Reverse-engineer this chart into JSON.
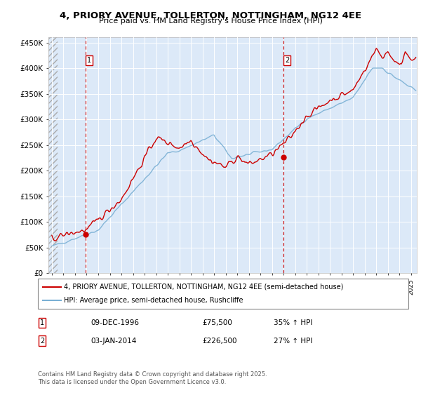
{
  "title": "4, PRIORY AVENUE, TOLLERTON, NOTTINGHAM, NG12 4EE",
  "subtitle": "Price paid vs. HM Land Registry's House Price Index (HPI)",
  "line1_label": "4, PRIORY AVENUE, TOLLERTON, NOTTINGHAM, NG12 4EE (semi-detached house)",
  "line2_label": "HPI: Average price, semi-detached house, Rushcliffe",
  "sale1_date": "09-DEC-1996",
  "sale1_price": "£75,500",
  "sale1_hpi": "35% ↑ HPI",
  "sale1_year": 1996.92,
  "sale1_value": 75500,
  "sale2_date": "03-JAN-2014",
  "sale2_price": "£226,500",
  "sale2_hpi": "27% ↑ HPI",
  "sale2_year": 2014.01,
  "sale2_value": 226500,
  "footer": "Contains HM Land Registry data © Crown copyright and database right 2025.\nThis data is licensed under the Open Government Licence v3.0.",
  "bg_color": "#dce9f8",
  "line1_color": "#cc0000",
  "line2_color": "#7ab0d4",
  "ylim": [
    0,
    460000
  ],
  "yticks": [
    0,
    50000,
    100000,
    150000,
    200000,
    250000,
    300000,
    350000,
    400000,
    450000
  ],
  "ytick_labels": [
    "£0",
    "£50K",
    "£100K",
    "£150K",
    "£200K",
    "£250K",
    "£300K",
    "£350K",
    "£400K",
    "£450K"
  ],
  "xmin": 1993.7,
  "xmax": 2025.5,
  "hatch_end": 1994.5
}
